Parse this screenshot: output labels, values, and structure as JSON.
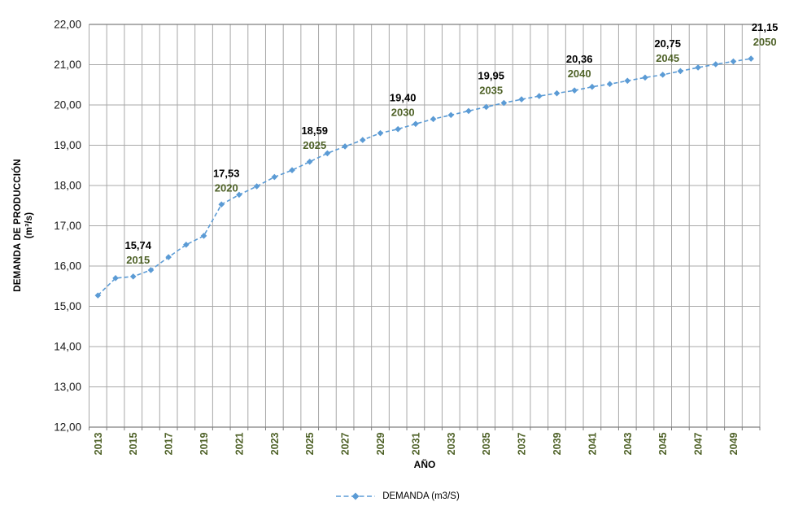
{
  "chart_data": {
    "type": "line",
    "title": "",
    "xlabel": "AÑO",
    "ylabel_line1": "DEMANDA DE PRODUCCIÓN",
    "ylabel_line2": "(m³/s)",
    "legend_label": "DEMANDA (m3/S)",
    "legend_position": "bottom",
    "grid": true,
    "ylim": [
      12,
      22
    ],
    "ytick_step": 1,
    "decimal_separator": ",",
    "x": [
      2013,
      2014,
      2015,
      2016,
      2017,
      2018,
      2019,
      2020,
      2021,
      2022,
      2023,
      2024,
      2025,
      2026,
      2027,
      2028,
      2029,
      2030,
      2031,
      2032,
      2033,
      2034,
      2035,
      2036,
      2037,
      2038,
      2039,
      2040,
      2041,
      2042,
      2043,
      2044,
      2045,
      2046,
      2047,
      2048,
      2049,
      2050
    ],
    "series": [
      {
        "name": "DEMANDA (m3/S)",
        "values": [
          15.27,
          15.7,
          15.74,
          15.9,
          16.22,
          16.53,
          16.75,
          17.53,
          17.77,
          17.98,
          18.21,
          18.38,
          18.59,
          18.8,
          18.97,
          19.13,
          19.3,
          19.4,
          19.53,
          19.65,
          19.75,
          19.85,
          19.95,
          20.05,
          20.14,
          20.22,
          20.29,
          20.36,
          20.45,
          20.52,
          20.6,
          20.68,
          20.75,
          20.84,
          20.93,
          21.01,
          21.08,
          21.15
        ]
      }
    ],
    "xtick_years": [
      2013,
      2015,
      2017,
      2019,
      2021,
      2023,
      2025,
      2027,
      2029,
      2031,
      2033,
      2035,
      2037,
      2039,
      2041,
      2043,
      2045,
      2047,
      2049
    ],
    "annotations": [
      {
        "x": 2015,
        "value_label": "15,74",
        "year_label": "2015"
      },
      {
        "x": 2020,
        "value_label": "17,53",
        "year_label": "2020"
      },
      {
        "x": 2025,
        "value_label": "18,59",
        "year_label": "2025"
      },
      {
        "x": 2030,
        "value_label": "19,40",
        "year_label": "2030"
      },
      {
        "x": 2035,
        "value_label": "19,95",
        "year_label": "2035"
      },
      {
        "x": 2040,
        "value_label": "20,36",
        "year_label": "2040"
      },
      {
        "x": 2045,
        "value_label": "20,75",
        "year_label": "2045"
      },
      {
        "x": 2050,
        "value_label": "21,15",
        "year_label": "2050"
      }
    ],
    "colors": {
      "line": "#5B9BD5",
      "marker": "#5B9BD5",
      "year_labels": "#4F6228",
      "value_labels": "#000000",
      "grid": "#A8A8A8",
      "axis": "#7F7F7F",
      "ytick_text": "#1A1A1A",
      "background": "#FFFFFF"
    }
  }
}
